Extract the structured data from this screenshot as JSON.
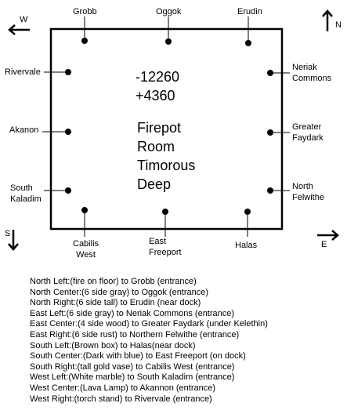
{
  "room": {
    "coord_1": "-12260",
    "coord_2": "+4360",
    "name_lines": [
      "Firepot",
      "Room",
      "Timorous",
      "Deep"
    ]
  },
  "compass": {
    "west": "W",
    "north": "N",
    "south": "S",
    "east": "E"
  },
  "portals": {
    "north_left": "Grobb",
    "north_center": "Oggok",
    "north_right": "Erudin",
    "east_left": [
      "Neriak",
      "Commons"
    ],
    "east_center": [
      "Greater",
      "Faydark"
    ],
    "east_right": [
      "North",
      "Felwithe"
    ],
    "south_left": "Halas",
    "south_center": [
      "East",
      "Freeport"
    ],
    "south_right": [
      "Cabilis",
      "West"
    ],
    "west_left": [
      "South",
      "Kaladim"
    ],
    "west_center": "Akanon",
    "west_right": "Rivervale"
  },
  "legend": [
    "North Left:(fire on floor) to Grobb (entrance)",
    "North Center:(6 side gray) to Oggok (entrance)",
    "North Right:(6 side tall) to Erudin (near dock)",
    "East Left:(6 side gray) to Neriak Commons (entrance)",
    "East Center:(4 side wood) to Greater Faydark (under Kelethin)",
    "East Right:(6 side rust) to Northern Felwithe (entrance)",
    "South Left:(Brown box) to Halas(near dock)",
    "South Center:(Dark with blue) to East Freeport (on dock)",
    "South Right:(tall gold vase) to Cabilis West (entrance)",
    "West Left:(White marble) to South Kaladim (entrance)",
    "West Center:(Lava Lamp) to Akannon (entrance)",
    "West Right:(torch stand) to Rivervale (entrance)"
  ]
}
